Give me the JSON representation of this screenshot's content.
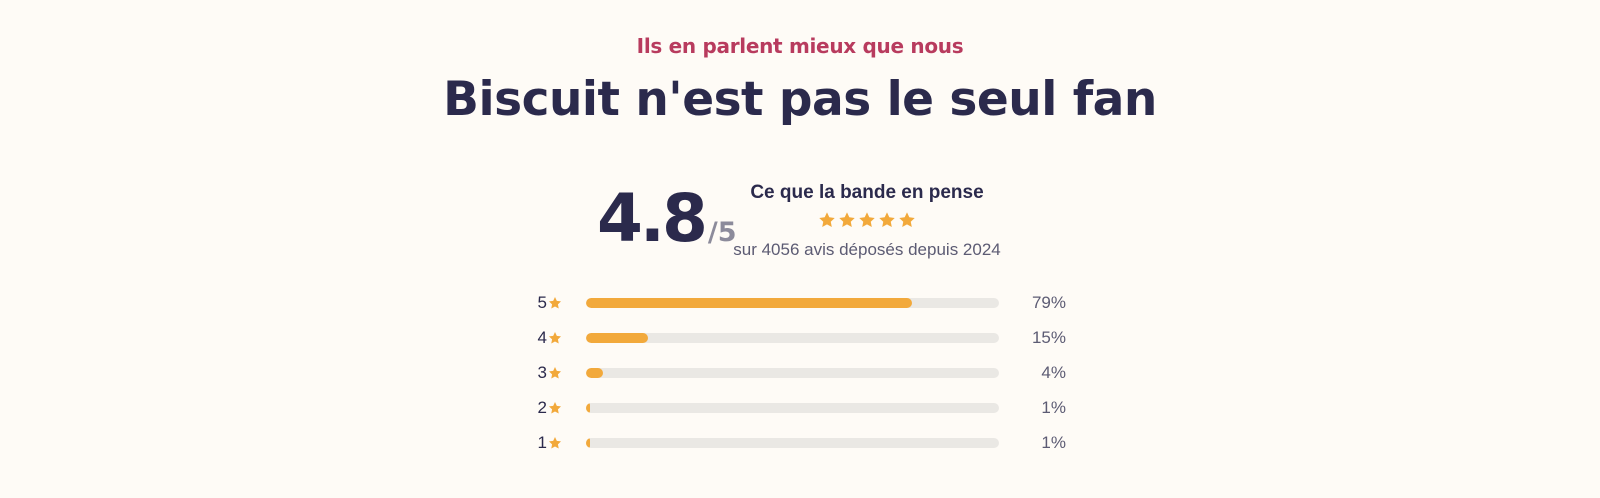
{
  "colors": {
    "background": "#fefbf6",
    "eyebrow": "#b83b5e",
    "ink": "#2b2a4c",
    "muted": "#5c5b73",
    "muted_light": "#8c8b9b",
    "star": "#f2a93b",
    "track": "#eae8e4"
  },
  "header": {
    "eyebrow": "Ils en parlent mieux que nous",
    "title": "Biscuit n'est pas le seul fan"
  },
  "rating": {
    "value": "4.8",
    "max_label": "/5",
    "heading": "Ce que la bande en pense",
    "stars_shown": 5,
    "star_icon": "star-icon",
    "count_text": "sur 4056 avis déposés depuis 2024"
  },
  "distribution": [
    {
      "stars": "5",
      "percent": 79,
      "percent_label": "79%"
    },
    {
      "stars": "4",
      "percent": 15,
      "percent_label": "15%"
    },
    {
      "stars": "3",
      "percent": 4,
      "percent_label": "4%"
    },
    {
      "stars": "2",
      "percent": 1,
      "percent_label": "1%"
    },
    {
      "stars": "1",
      "percent": 1,
      "percent_label": "1%"
    }
  ]
}
